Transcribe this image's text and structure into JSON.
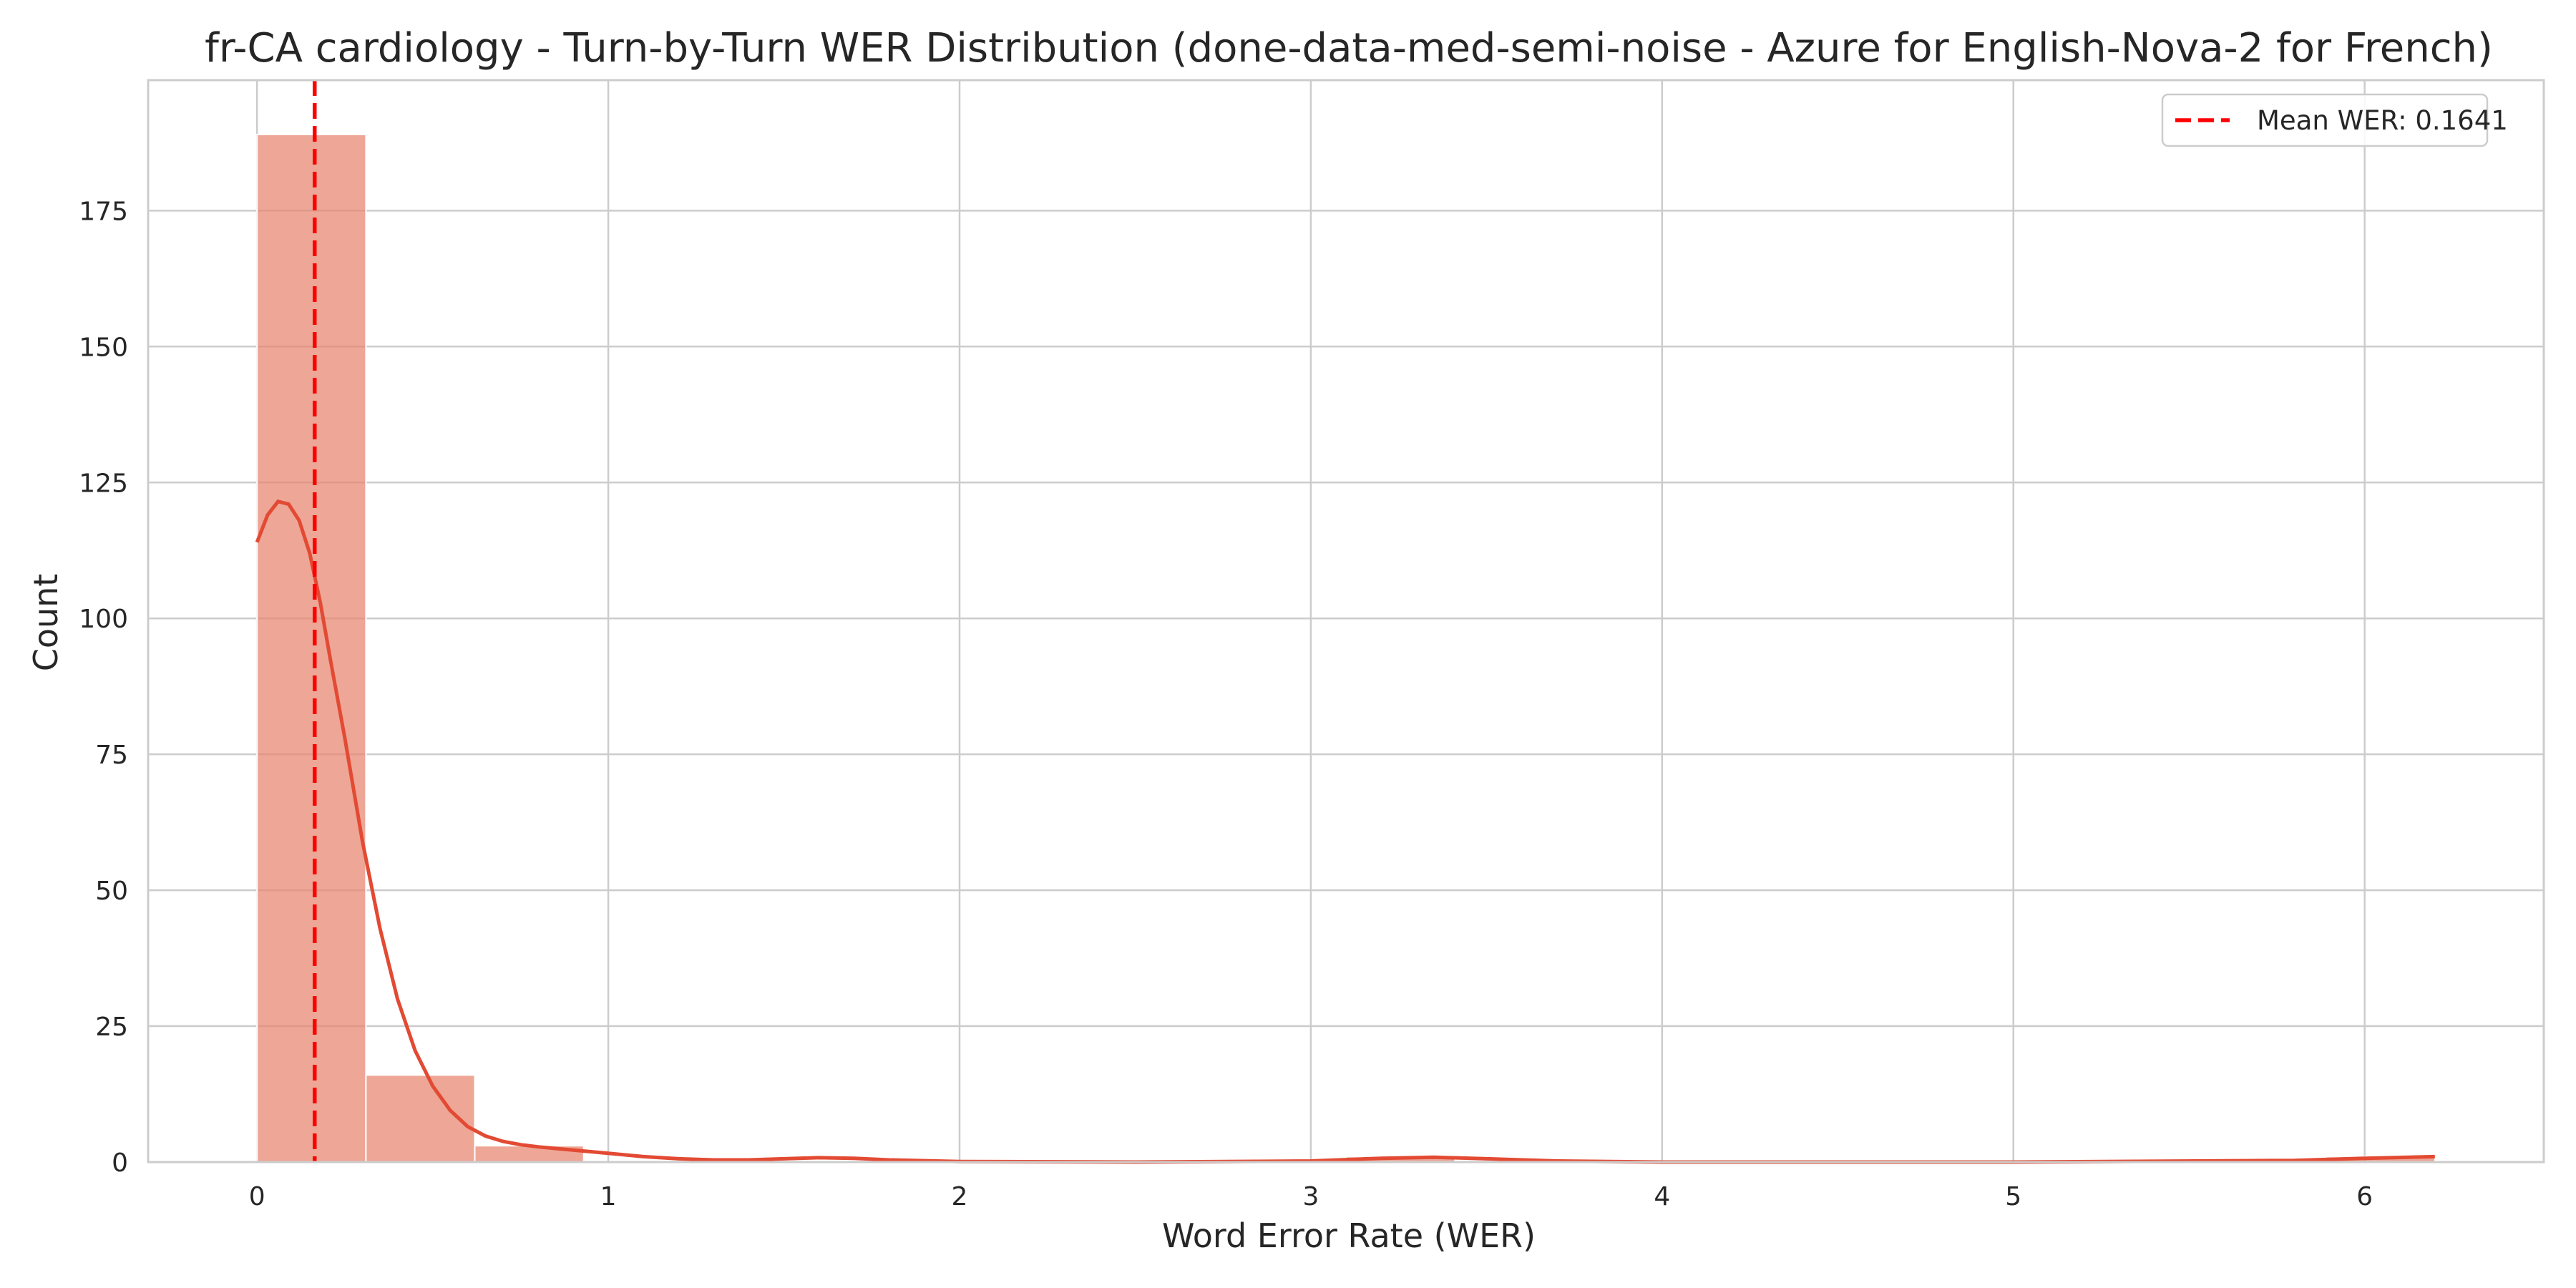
{
  "chart_data": {
    "type": "histogram",
    "title": "fr-CA cardiology - Turn-by-Turn WER Distribution (done-data-med-semi-noise - Azure for English-Nova-2 for French)",
    "xlabel": "Word Error Rate (WER)",
    "ylabel": "Count",
    "xlim": [
      -0.31,
      6.51
    ],
    "ylim": [
      0,
      199
    ],
    "xticks": [
      0,
      1,
      2,
      3,
      4,
      5,
      6
    ],
    "yticks": [
      0,
      25,
      50,
      75,
      100,
      125,
      150,
      175
    ],
    "grid": true,
    "bins": [
      {
        "x0": 0.0,
        "x1": 0.31,
        "count": 189
      },
      {
        "x0": 0.31,
        "x1": 0.62,
        "count": 16
      },
      {
        "x0": 0.62,
        "x1": 0.93,
        "count": 3
      },
      {
        "x0": 1.55,
        "x1": 1.86,
        "count": 0
      },
      {
        "x0": 3.1,
        "x1": 3.41,
        "count": 1
      },
      {
        "x0": 5.89,
        "x1": 6.2,
        "count": 1
      }
    ],
    "kde": {
      "x": [
        0.0,
        0.03,
        0.06,
        0.09,
        0.12,
        0.15,
        0.18,
        0.21,
        0.25,
        0.3,
        0.35,
        0.4,
        0.45,
        0.5,
        0.55,
        0.6,
        0.65,
        0.7,
        0.75,
        0.8,
        0.85,
        0.9,
        1.0,
        1.1,
        1.2,
        1.3,
        1.4,
        1.5,
        1.6,
        1.7,
        1.8,
        2.0,
        2.5,
        3.0,
        3.2,
        3.35,
        3.5,
        3.7,
        4.0,
        5.0,
        5.8,
        6.0,
        6.2
      ],
      "y": [
        114,
        119,
        121.5,
        121,
        118,
        112,
        103,
        92,
        78,
        59,
        43,
        30,
        20.5,
        14,
        9.5,
        6.5,
        4.8,
        3.8,
        3.2,
        2.8,
        2.5,
        2.2,
        1.6,
        1.0,
        0.6,
        0.4,
        0.4,
        0.6,
        0.8,
        0.7,
        0.4,
        0.1,
        0.0,
        0.2,
        0.7,
        0.9,
        0.6,
        0.2,
        0.0,
        0.0,
        0.3,
        0.7,
        1.0
      ]
    },
    "mean_line": {
      "value": 0.1641,
      "label": "Mean WER: 0.1641"
    },
    "legend_position": "upper right",
    "colors": {
      "bars": "#e8836f",
      "kde": "#e34a33",
      "mean": "#ff0000",
      "grid": "#cccccc"
    }
  }
}
